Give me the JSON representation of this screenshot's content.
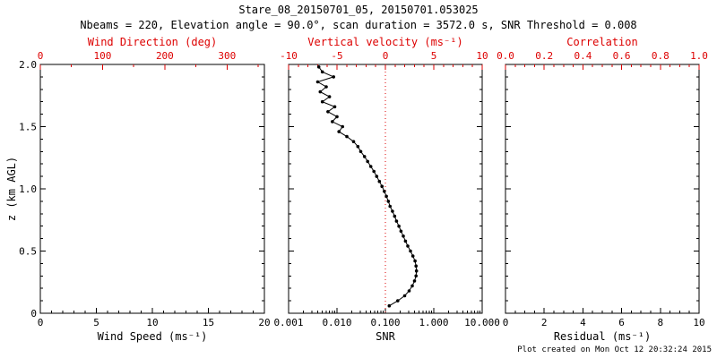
{
  "title": "Stare_08_20150701_05, 20150701.053025",
  "subtitle": "Nbeams = 220, Elevation angle = 90.0°, scan duration = 3572.0 s, SNR Threshold = 0.008",
  "footer": "Plot created on Mon Oct 12 20:32:24 2015",
  "colors": {
    "axis": "#000000",
    "top_axis": "#dd0000",
    "data": "#000000",
    "refline": "#dd0000"
  },
  "chart_data": [
    {
      "type": "scatter",
      "panel": "wind-speed",
      "xlabel_bottom": "Wind Speed (ms⁻¹)",
      "x_bottom_range": [
        0,
        20
      ],
      "x_bottom_ticks": [
        0,
        5,
        10,
        15,
        20
      ],
      "x_bottom_tick_labels": [
        "0",
        "5",
        "10",
        "15",
        "20"
      ],
      "x_bottom_minor": 1,
      "xlabel_top": "Wind Direction (deg)",
      "x_top_range": [
        0,
        360
      ],
      "x_top_ticks": [
        0,
        100,
        200,
        300
      ],
      "x_top_tick_labels": [
        "0",
        "100",
        "200",
        "300"
      ],
      "x_top_minor": 50,
      "ylabel": "z (km AGL)",
      "y_range": [
        0,
        2
      ],
      "y_ticks": [
        0,
        0.5,
        1,
        1.5,
        2
      ],
      "y_tick_labels": [
        "0",
        "0.5",
        "1.0",
        "1.5",
        "2.0"
      ],
      "y_minor": 0.1,
      "points": null
    },
    {
      "type": "scatter",
      "panel": "snr",
      "xlabel_bottom": "SNR",
      "x_scale": "log",
      "x_bottom_range": [
        0.001,
        10
      ],
      "x_bottom_ticks": [
        0.001,
        0.01,
        0.1,
        1,
        10
      ],
      "x_bottom_tick_labels": [
        "0.001",
        "0.010",
        "0.100",
        "1.000",
        "10.000"
      ],
      "xlabel_top": "Vertical velocity (ms⁻¹)",
      "x_top_range": [
        -10,
        10
      ],
      "x_top_ticks": [
        -10,
        -5,
        0,
        5,
        10
      ],
      "x_top_tick_labels": [
        "-10",
        "-5",
        "0",
        "5",
        "10"
      ],
      "x_top_minor": 1,
      "y_range": [
        0,
        2
      ],
      "y_ticks": [
        0,
        0.5,
        1,
        1.5,
        2
      ],
      "y_minor": 0.1,
      "refline_snr": 0.1,
      "points": {
        "z": [
          0.06,
          0.1,
          0.14,
          0.18,
          0.22,
          0.26,
          0.3,
          0.34,
          0.38,
          0.42,
          0.46,
          0.5,
          0.54,
          0.58,
          0.62,
          0.66,
          0.7,
          0.74,
          0.78,
          0.82,
          0.86,
          0.9,
          0.94,
          0.98,
          1.02,
          1.06,
          1.1,
          1.14,
          1.18,
          1.22,
          1.26,
          1.3,
          1.34,
          1.38,
          1.42,
          1.46,
          1.5,
          1.54,
          1.58,
          1.62,
          1.66,
          1.7,
          1.74,
          1.78,
          1.82,
          1.86,
          1.9,
          1.94,
          1.98
        ],
        "snr": [
          0.12,
          0.18,
          0.25,
          0.31,
          0.36,
          0.4,
          0.43,
          0.44,
          0.43,
          0.41,
          0.37,
          0.33,
          0.29,
          0.26,
          0.235,
          0.21,
          0.19,
          0.17,
          0.155,
          0.14,
          0.125,
          0.115,
          0.105,
          0.095,
          0.085,
          0.075,
          0.066,
          0.058,
          0.05,
          0.043,
          0.037,
          0.031,
          0.027,
          0.022,
          0.016,
          0.011,
          0.013,
          0.008,
          0.01,
          0.0065,
          0.009,
          0.005,
          0.007,
          0.0045,
          0.006,
          0.004,
          0.0085,
          0.005,
          0.0042
        ]
      }
    },
    {
      "type": "scatter",
      "panel": "residual",
      "xlabel_bottom": "Residual (ms⁻¹)",
      "x_bottom_range": [
        0,
        10
      ],
      "x_bottom_ticks": [
        0,
        2,
        4,
        6,
        8,
        10
      ],
      "x_bottom_tick_labels": [
        "0",
        "2",
        "4",
        "6",
        "8",
        "10"
      ],
      "x_bottom_minor": 0.5,
      "xlabel_top": "Correlation",
      "x_top_range": [
        0,
        1
      ],
      "x_top_ticks": [
        0,
        0.2,
        0.4,
        0.6,
        0.8,
        1
      ],
      "x_top_tick_labels": [
        "0.0",
        "0.2",
        "0.4",
        "0.6",
        "0.8",
        "1.0"
      ],
      "x_top_minor": 0.05,
      "y_range": [
        0,
        2
      ],
      "y_ticks": [
        0,
        0.5,
        1,
        1.5,
        2
      ],
      "y_minor": 0.1,
      "points": null
    }
  ]
}
